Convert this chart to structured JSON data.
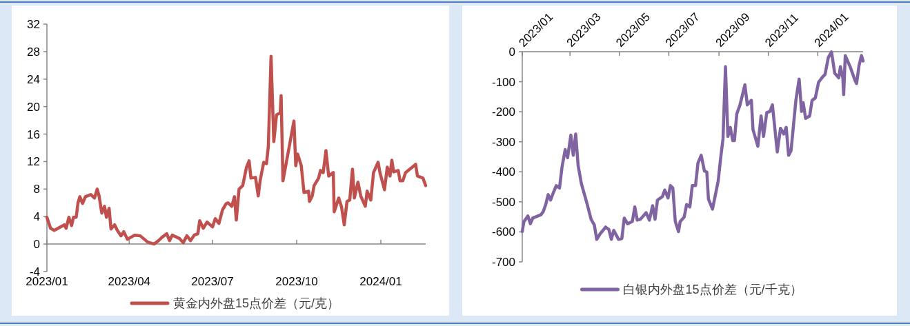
{
  "chart_data": [
    {
      "type": "line",
      "legend": "bottom",
      "x": [
        "2023-01-01",
        "2023-01-05",
        "2023-01-09",
        "2023-01-20",
        "2023-01-22",
        "2023-01-25",
        "2023-01-28",
        "2023-01-30",
        "2023-02-02",
        "2023-02-04",
        "2023-02-06",
        "2023-02-09",
        "2023-02-12",
        "2023-02-18",
        "2023-02-22",
        "2023-02-25",
        "2023-02-27",
        "2023-03-02",
        "2023-03-05",
        "2023-03-07",
        "2023-03-10",
        "2023-03-12",
        "2023-03-16",
        "2023-03-19",
        "2023-03-23",
        "2023-03-26",
        "2023-03-30",
        "2023-04-07",
        "2023-04-13",
        "2023-04-21",
        "2023-04-28",
        "2023-05-03",
        "2023-05-07",
        "2023-05-12",
        "2023-05-15",
        "2023-05-18",
        "2023-05-26",
        "2023-05-30",
        "2023-06-03",
        "2023-06-07",
        "2023-06-11",
        "2023-06-15",
        "2023-06-17",
        "2023-06-21",
        "2023-06-25",
        "2023-07-01",
        "2023-07-04",
        "2023-07-08",
        "2023-07-12",
        "2023-07-16",
        "2023-07-18",
        "2023-07-22",
        "2023-07-25",
        "2023-07-27",
        "2023-07-30",
        "2023-08-03",
        "2023-08-07",
        "2023-08-10",
        "2023-08-12",
        "2023-08-17",
        "2023-08-20",
        "2023-08-22",
        "2023-08-26",
        "2023-08-29",
        "2023-08-31",
        "2023-09-03",
        "2023-09-06",
        "2023-09-09",
        "2023-09-13",
        "2023-09-14",
        "2023-09-16",
        "2023-09-28",
        "2023-09-30",
        "2023-10-02",
        "2023-10-06",
        "2023-10-09",
        "2023-10-14",
        "2023-10-15",
        "2023-10-18",
        "2023-10-20",
        "2023-10-25",
        "2023-10-27",
        "2023-10-30",
        "2023-11-02",
        "2023-11-05",
        "2023-11-10",
        "2023-11-11",
        "2023-11-16",
        "2023-11-19",
        "2023-11-22",
        "2023-11-25",
        "2023-11-28",
        "2023-12-01",
        "2023-12-03",
        "2023-12-07",
        "2023-12-10",
        "2023-12-15",
        "2023-12-17",
        "2023-12-21",
        "2023-12-24",
        "2023-12-29",
        "2023-12-31",
        "2024-01-05",
        "2024-01-08",
        "2024-01-11",
        "2024-01-13",
        "2024-01-15",
        "2024-01-20",
        "2024-01-22",
        "2024-01-25",
        "2024-01-28",
        "2024-02-08",
        "2024-02-10",
        "2024-02-16",
        "2024-02-19"
      ],
      "series": [
        {
          "name": "黄金内外盘15点价差（元/克）",
          "color": "#c0504d",
          "values": [
            3.9,
            2.3,
            2.0,
            2.8,
            2.3,
            3.9,
            2.7,
            3.9,
            3.9,
            6.0,
            6.9,
            5.9,
            6.9,
            7.2,
            6.7,
            8.0,
            7.0,
            4.5,
            5.5,
            3.9,
            5.2,
            2.2,
            2.8,
            2.0,
            1.2,
            1.8,
            0.7,
            1.3,
            1.2,
            0.3,
            0,
            0.5,
            1.0,
            1.5,
            0.5,
            1.3,
            0.8,
            0.2,
            1.2,
            0.5,
            1.3,
            1.5,
            3.4,
            2.3,
            3.2,
            2.5,
            3.7,
            3.0,
            5.0,
            5.9,
            6.0,
            5.5,
            6.9,
            3.5,
            8.0,
            8.5,
            11.1,
            12.1,
            9.6,
            9.7,
            7.0,
            9.2,
            11.9,
            11.7,
            14.2,
            27.3,
            14.9,
            18.8,
            19.1,
            21.6,
            9.2,
            17.9,
            11.4,
            13.1,
            11.4,
            7.5,
            7.7,
            6.2,
            7.0,
            8.5,
            9.6,
            10.7,
            10.4,
            13.6,
            9.9,
            10.4,
            4.7,
            6.7,
            5.4,
            2.8,
            6.2,
            6.4,
            10.9,
            6.7,
            9.0,
            7.0,
            5.5,
            7.7,
            6.4,
            10.4,
            11.9,
            10.4,
            7.9,
            11.2,
            9.9,
            12.2,
            10.5,
            10.7,
            9.2,
            9.2,
            10.4,
            11.6,
            9.9,
            9.6,
            8.5
          ]
        }
      ],
      "xlim": [
        "2023-01-01",
        "2024-02-19"
      ],
      "xticks": [
        {
          "value": "2023-01-01",
          "label": "2023/01"
        },
        {
          "value": "2023-04-01",
          "label": "2023/04"
        },
        {
          "value": "2023-07-01",
          "label": "2023/07"
        },
        {
          "value": "2023-10-01",
          "label": "2023/10"
        },
        {
          "value": "2024-01-01",
          "label": "2024/01"
        }
      ],
      "ylim": [
        -4,
        32
      ],
      "yticks": [
        -4,
        0,
        4,
        8,
        12,
        16,
        20,
        24,
        28,
        32
      ]
    },
    {
      "type": "line",
      "legend": "bottom",
      "x": [
        "2023-01-01",
        "2023-01-03",
        "2023-01-08",
        "2023-01-11",
        "2023-01-14",
        "2023-01-24",
        "2023-01-27",
        "2023-01-30",
        "2023-02-02",
        "2023-02-05",
        "2023-02-08",
        "2023-02-12",
        "2023-02-16",
        "2023-02-19",
        "2023-02-23",
        "2023-02-26",
        "2023-03-02",
        "2023-03-05",
        "2023-03-08",
        "2023-03-11",
        "2023-03-15",
        "2023-03-22",
        "2023-03-27",
        "2023-03-31",
        "2023-04-03",
        "2023-04-07",
        "2023-04-14",
        "2023-04-18",
        "2023-04-21",
        "2023-04-24",
        "2023-04-30",
        "2023-05-04",
        "2023-05-07",
        "2023-05-11",
        "2023-05-17",
        "2023-05-20",
        "2023-05-23",
        "2023-05-27",
        "2023-06-03",
        "2023-06-07",
        "2023-06-11",
        "2023-06-14",
        "2023-06-17",
        "2023-06-23",
        "2023-06-26",
        "2023-06-30",
        "2023-07-03",
        "2023-07-06",
        "2023-07-09",
        "2023-07-13",
        "2023-07-15",
        "2023-07-20",
        "2023-07-23",
        "2023-07-27",
        "2023-07-30",
        "2023-08-03",
        "2023-08-06",
        "2023-08-10",
        "2023-08-14",
        "2023-08-17",
        "2023-08-19",
        "2023-08-24",
        "2023-08-31",
        "2023-09-03",
        "2023-09-06",
        "2023-09-09",
        "2023-09-12",
        "2023-09-15",
        "2023-09-18",
        "2023-09-20",
        "2023-09-23",
        "2023-09-27",
        "2023-10-03",
        "2023-10-06",
        "2023-10-11",
        "2023-10-13",
        "2023-10-19",
        "2023-10-23",
        "2023-10-26",
        "2023-10-30",
        "2023-11-03",
        "2023-11-06",
        "2023-11-12",
        "2023-11-16",
        "2023-11-20",
        "2023-11-23",
        "2023-11-26",
        "2023-11-29",
        "2023-12-05",
        "2023-12-09",
        "2023-12-12",
        "2023-12-14",
        "2023-12-17",
        "2023-12-22",
        "2023-12-25",
        "2023-12-29",
        "2024-01-02",
        "2024-01-07",
        "2024-01-10",
        "2024-01-14",
        "2024-01-18",
        "2024-01-22",
        "2024-01-27",
        "2024-01-29",
        "2024-02-01",
        "2024-02-02",
        "2024-02-04",
        "2024-02-10",
        "2024-02-16",
        "2024-02-18",
        "2024-02-21",
        "2024-02-24",
        "2024-02-26"
      ],
      "series": [
        {
          "name": "白银内外盘15点价差（元/千克）",
          "color": "#8064a2",
          "values": [
            -599,
            -566,
            -547,
            -573,
            -554,
            -543,
            -532,
            -509,
            -476,
            -494,
            -472,
            -446,
            -454,
            -386,
            -326,
            -353,
            -278,
            -345,
            -274,
            -379,
            -439,
            -506,
            -558,
            -577,
            -625,
            -607,
            -584,
            -592,
            -625,
            -595,
            -625,
            -622,
            -554,
            -573,
            -565,
            -517,
            -561,
            -558,
            -536,
            -561,
            -513,
            -558,
            -494,
            -483,
            -461,
            -487,
            -446,
            -454,
            -565,
            -599,
            -566,
            -551,
            -509,
            -517,
            -446,
            -446,
            -371,
            -345,
            -397,
            -401,
            -491,
            -524,
            -431,
            -356,
            -289,
            -50,
            -282,
            -252,
            -296,
            -296,
            -207,
            -177,
            -110,
            -177,
            -162,
            -259,
            -315,
            -214,
            -282,
            -203,
            -199,
            -177,
            -334,
            -255,
            -274,
            -252,
            -345,
            -330,
            -162,
            -91,
            -199,
            -170,
            -222,
            -214,
            -162,
            -154,
            -102,
            -84,
            -76,
            -20,
            -1,
            -72,
            -87,
            -50,
            -87,
            -143,
            -13,
            -50,
            -95,
            -106,
            -46,
            -13,
            -31
          ]
        }
      ],
      "xlim": [
        "2023-01-01",
        "2024-02-26"
      ],
      "xticks": [
        {
          "value": "2023-01-01",
          "label": "2023/01"
        },
        {
          "value": "2023-03-01",
          "label": "2023/03"
        },
        {
          "value": "2023-05-01",
          "label": "2023/05"
        },
        {
          "value": "2023-07-01",
          "label": "2023/07"
        },
        {
          "value": "2023-09-01",
          "label": "2023/09"
        },
        {
          "value": "2023-11-01",
          "label": "2023/11"
        },
        {
          "value": "2024-01-01",
          "label": "2024/01"
        }
      ],
      "ylim": [
        -700,
        0
      ],
      "yticks": [
        -700,
        -600,
        -500,
        -400,
        -300,
        -200,
        -100,
        0
      ]
    }
  ]
}
